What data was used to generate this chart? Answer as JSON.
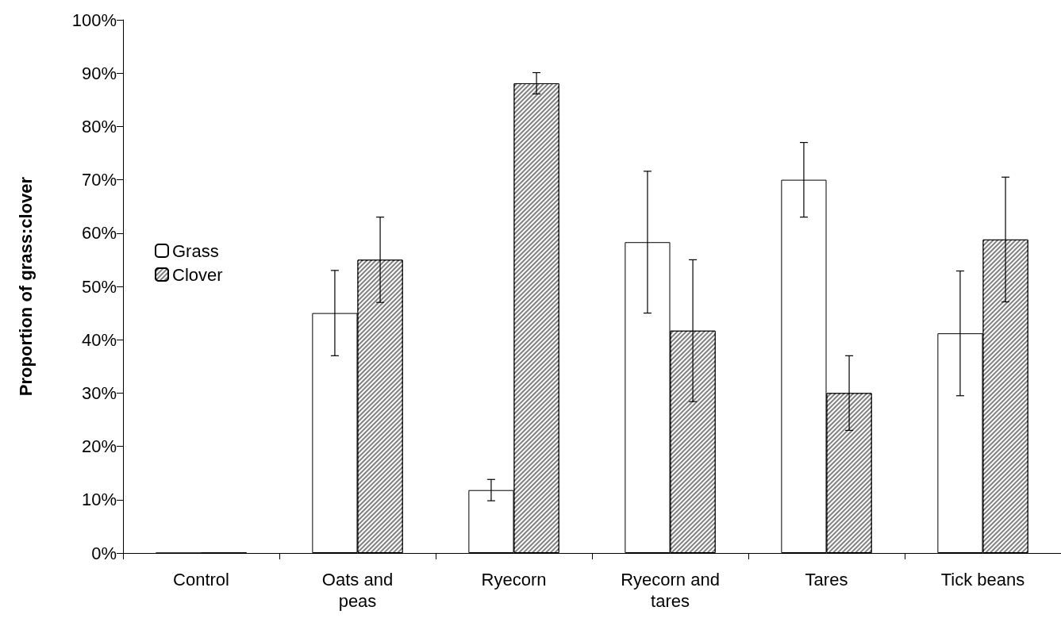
{
  "chart_data": {
    "type": "bar",
    "ylabel": "Proportion of grass:clover",
    "categories": [
      "Control",
      "Oats and\npeas",
      "Ryecorn",
      "Ryecorn and\ntares",
      "Tares",
      "Tick beans"
    ],
    "series": [
      {
        "name": "Grass",
        "color": "#ffffff",
        "values": [
          0,
          45,
          11.8,
          58.3,
          70,
          41.2
        ],
        "errors": [
          null,
          8,
          2,
          13.3,
          7,
          11.7
        ]
      },
      {
        "name": "Clover",
        "color": "#808080",
        "values": [
          0,
          55,
          88.1,
          41.7,
          30,
          58.8
        ],
        "errors": [
          null,
          8,
          2,
          13.3,
          7,
          11.7
        ]
      }
    ],
    "ylim": [
      0,
      100
    ],
    "yticks": [
      {
        "value": 0,
        "label": "0%"
      },
      {
        "value": 10,
        "label": "10%"
      },
      {
        "value": 20,
        "label": "20%"
      },
      {
        "value": 30,
        "label": "30%"
      },
      {
        "value": 40,
        "label": "40%"
      },
      {
        "value": 50,
        "label": "50%"
      },
      {
        "value": 60,
        "label": "60%"
      },
      {
        "value": 70,
        "label": "70%"
      },
      {
        "value": 80,
        "label": "80%"
      },
      {
        "value": 90,
        "label": "90%"
      },
      {
        "value": 100,
        "label": "100%"
      }
    ],
    "grid": false,
    "legend": "left"
  }
}
